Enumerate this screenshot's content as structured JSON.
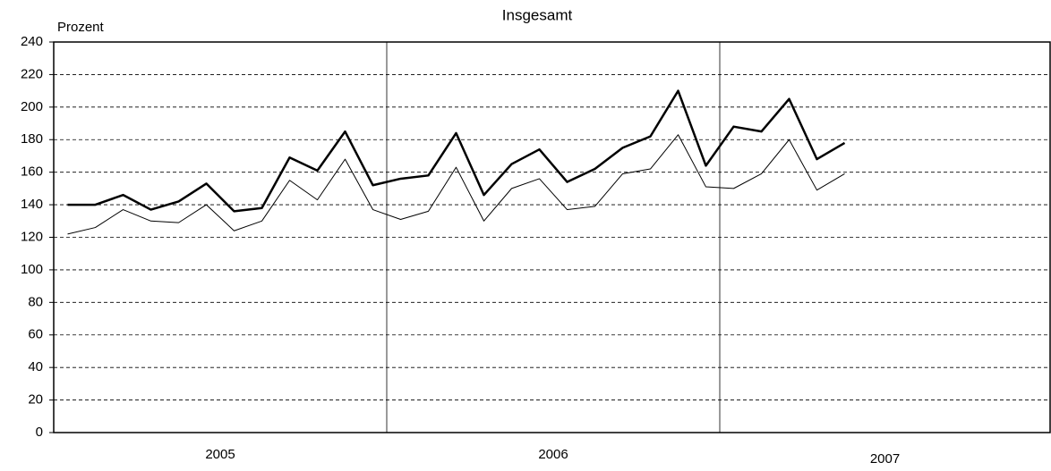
{
  "chart_data": {
    "type": "line",
    "title": "Insgesamt",
    "ylabel": "Prozent",
    "categories": [
      null,
      null,
      null,
      null,
      null,
      null,
      null,
      null,
      null,
      null,
      null,
      null,
      null,
      null,
      null,
      null,
      null,
      null,
      null,
      null,
      null,
      null,
      null,
      null,
      null,
      null,
      null,
      null,
      null,
      null,
      null,
      null,
      null,
      null,
      null,
      null
    ],
    "x_group_labels": [
      "2005",
      "2006",
      "2007"
    ],
    "series": [
      {
        "color": "#000000",
        "width": 2.5,
        "values": [
          140,
          140,
          146,
          137,
          142,
          153,
          136,
          138,
          169,
          161,
          185,
          152,
          156,
          158,
          184,
          146,
          165,
          174,
          154,
          162,
          175,
          182,
          210,
          164,
          188,
          185,
          205,
          168,
          178,
          null,
          null,
          null,
          null,
          null,
          null,
          null
        ]
      },
      {
        "color": "#000000",
        "width": 1,
        "values": [
          122,
          126,
          137,
          130,
          129,
          140,
          124,
          130,
          155,
          143,
          168,
          137,
          131,
          136,
          163,
          130,
          150,
          156,
          137,
          139,
          159,
          162,
          183,
          151,
          150,
          159,
          180,
          149,
          159,
          null,
          null,
          null,
          null,
          null,
          null,
          null
        ]
      }
    ],
    "ylim": [
      0,
      240
    ],
    "yticks": [
      0,
      20,
      40,
      60,
      80,
      100,
      120,
      140,
      160,
      180,
      200,
      220,
      240
    ],
    "grid": true
  }
}
